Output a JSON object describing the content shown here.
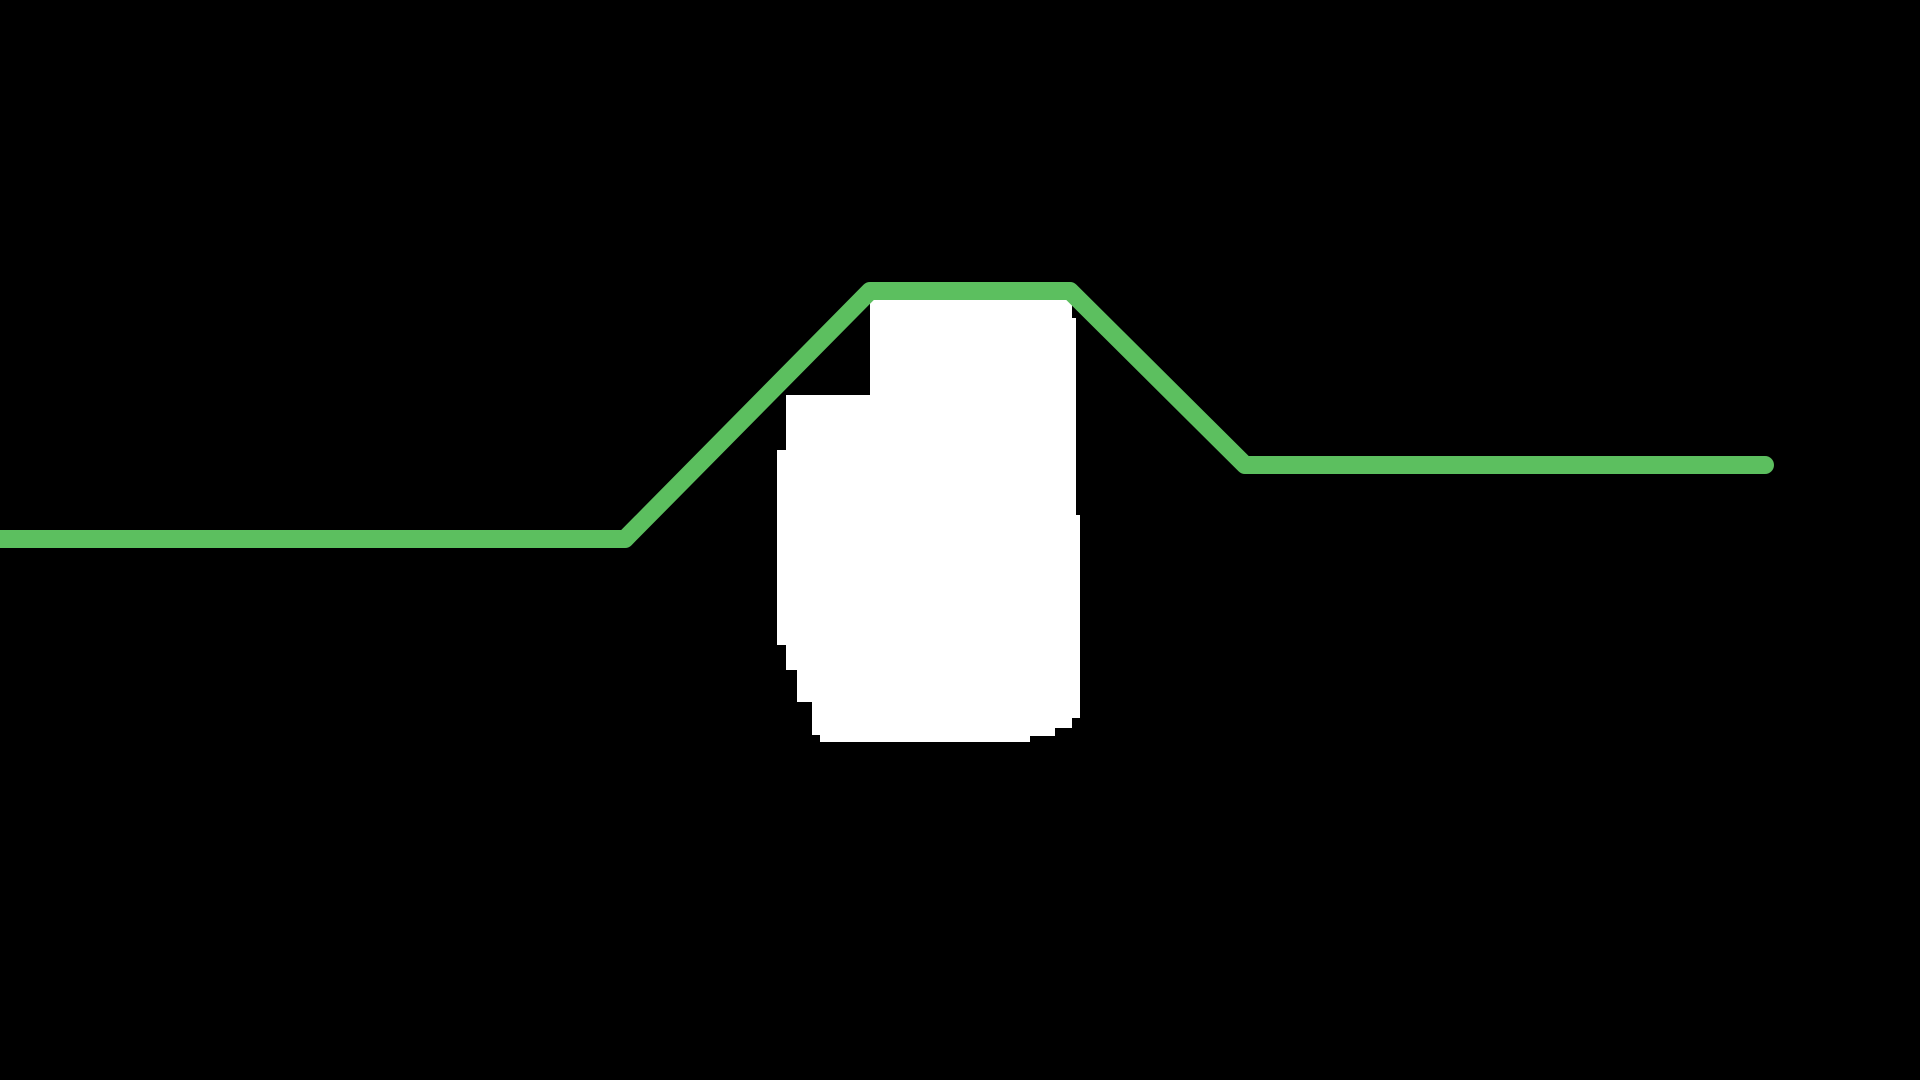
{
  "scene": {
    "background_color": "#000000",
    "line_color": "#5CBF5F",
    "shape_color": "#FFFFFF"
  },
  "elements": {
    "line": {
      "name": "green-polyline"
    },
    "shape": {
      "name": "white-blob-shape"
    }
  }
}
